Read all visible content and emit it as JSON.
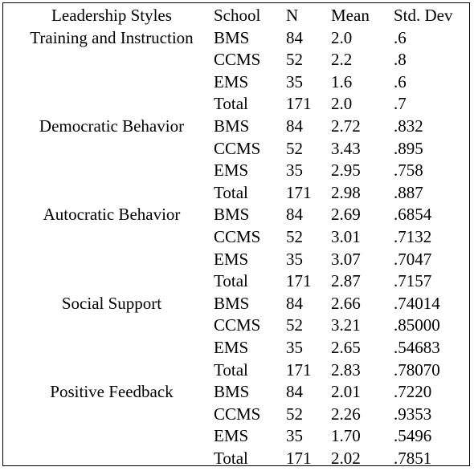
{
  "headers": {
    "style": "Leadership Styles",
    "school": "School",
    "n": "N",
    "mean": "Mean",
    "sd": "Std. Dev"
  },
  "groups": [
    {
      "style": "Training and Instruction",
      "rows": [
        {
          "school": "BMS",
          "n": "84",
          "mean": "2.0",
          "sd": ".6"
        },
        {
          "school": "CCMS",
          "n": "52",
          "mean": "2.2",
          "sd": ".8"
        },
        {
          "school": "EMS",
          "n": "35",
          "mean": "1.6",
          "sd": ".6"
        },
        {
          "school": "Total",
          "n": "171",
          "mean": "2.0",
          "sd": ".7"
        }
      ]
    },
    {
      "style": "Democratic Behavior",
      "rows": [
        {
          "school": "BMS",
          "n": "84",
          "mean": "2.72",
          "sd": ".832"
        },
        {
          "school": "CCMS",
          "n": "52",
          "mean": "3.43",
          "sd": ".895"
        },
        {
          "school": "EMS",
          "n": "35",
          "mean": "2.95",
          "sd": ".758"
        },
        {
          "school": "Total",
          "n": "171",
          "mean": "2.98",
          "sd": ".887"
        }
      ]
    },
    {
      "style": "Autocratic Behavior",
      "rows": [
        {
          "school": "BMS",
          "n": "84",
          "mean": "2.69",
          "sd": ".6854"
        },
        {
          "school": "CCMS",
          "n": "52",
          "mean": "3.01",
          "sd": ".7132"
        },
        {
          "school": "EMS",
          "n": "35",
          "mean": "3.07",
          "sd": ".7047"
        },
        {
          "school": "Total",
          "n": "171",
          "mean": "2.87",
          "sd": ".7157"
        }
      ]
    },
    {
      "style": "Social Support",
      "rows": [
        {
          "school": "BMS",
          "n": "84",
          "mean": "2.66",
          "sd": ".74014"
        },
        {
          "school": "CCMS",
          "n": "52",
          "mean": "3.21",
          "sd": ".85000"
        },
        {
          "school": "EMS",
          "n": "35",
          "mean": "2.65",
          "sd": ".54683"
        },
        {
          "school": "Total",
          "n": "171",
          "mean": "2.83",
          "sd": ".78070"
        }
      ]
    },
    {
      "style": "Positive Feedback",
      "rows": [
        {
          "school": "BMS",
          "n": "84",
          "mean": "2.01",
          "sd": ".7220"
        },
        {
          "school": "CCMS",
          "n": "52",
          "mean": "2.26",
          "sd": ".9353"
        },
        {
          "school": "EMS",
          "n": "35",
          "mean": "1.70",
          "sd": ".5496"
        },
        {
          "school": "Total",
          "n": "171",
          "mean": "2.02",
          "sd": ".7851"
        }
      ]
    }
  ]
}
